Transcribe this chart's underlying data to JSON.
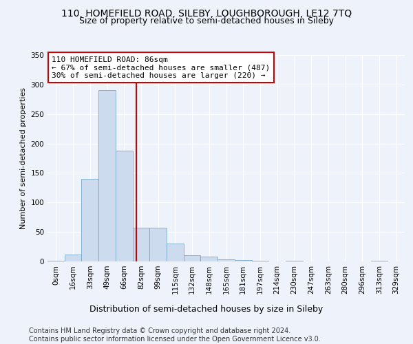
{
  "title": "110, HOMEFIELD ROAD, SILEBY, LOUGHBOROUGH, LE12 7TQ",
  "subtitle": "Size of property relative to semi-detached houses in Sileby",
  "xlabel": "Distribution of semi-detached houses by size in Sileby",
  "ylabel": "Number of semi-detached properties",
  "bin_labels": [
    "0sqm",
    "16sqm",
    "33sqm",
    "49sqm",
    "66sqm",
    "82sqm",
    "99sqm",
    "115sqm",
    "132sqm",
    "148sqm",
    "165sqm",
    "181sqm",
    "197sqm",
    "214sqm",
    "230sqm",
    "247sqm",
    "263sqm",
    "280sqm",
    "296sqm",
    "313sqm",
    "329sqm"
  ],
  "bar_values": [
    1,
    12,
    140,
    290,
    188,
    57,
    57,
    30,
    10,
    8,
    4,
    2,
    1,
    0,
    1,
    0,
    0,
    0,
    0,
    1,
    0
  ],
  "bar_color": "#ccdcee",
  "bar_edge_color": "#7aaaca",
  "vline_color": "#cc0000",
  "annotation_text": "110 HOMEFIELD ROAD: 86sqm\n← 67% of semi-detached houses are smaller (487)\n30% of semi-detached houses are larger (220) →",
  "annotation_box_color": "#ffffff",
  "annotation_box_edge": "#cc0000",
  "ylim": [
    0,
    350
  ],
  "yticks": [
    0,
    50,
    100,
    150,
    200,
    250,
    300,
    350
  ],
  "background_color": "#eef2fa",
  "grid_color": "#ffffff",
  "footer_text": "Contains HM Land Registry data © Crown copyright and database right 2024.\nContains public sector information licensed under the Open Government Licence v3.0.",
  "title_fontsize": 10,
  "subtitle_fontsize": 9,
  "xlabel_fontsize": 9,
  "ylabel_fontsize": 8,
  "tick_fontsize": 7.5,
  "annotation_fontsize": 8,
  "footer_fontsize": 7
}
